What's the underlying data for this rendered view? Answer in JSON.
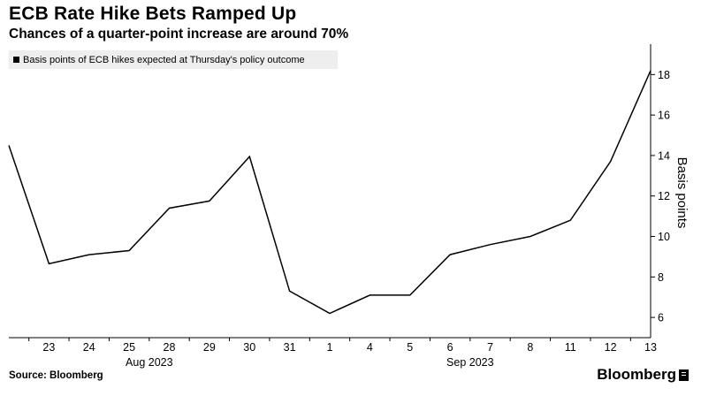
{
  "header": {
    "title": "ECB Rate Hike Bets Ramped Up",
    "subtitle": "Chances of a quarter-point increase are around 70%"
  },
  "footer": {
    "source": "Source: Bloomberg",
    "brand": "Bloomberg"
  },
  "chart_data": {
    "type": "line",
    "legend": "Basis points of ECB hikes expected at Thursday's policy outcome",
    "legend_position": "top-left",
    "ylabel": "Basis points",
    "y_axis_side": "right",
    "ylim": [
      5,
      19.5
    ],
    "yticks": [
      6,
      8,
      10,
      12,
      14,
      16,
      18
    ],
    "grid": false,
    "line_color": "#000000",
    "x_tick_labels": [
      "23",
      "24",
      "25",
      "28",
      "29",
      "30",
      "31",
      "1",
      "4",
      "5",
      "6",
      "7",
      "8",
      "11",
      "12",
      "13"
    ],
    "x_group_labels": [
      {
        "label": "Aug 2023",
        "position_between": [
          "25",
          "28"
        ]
      },
      {
        "label": "Sep 2023",
        "position_between": [
          "6",
          "7"
        ]
      }
    ],
    "series": [
      {
        "x": [
          "2023-08-22",
          "2023-08-23",
          "2023-08-24",
          "2023-08-25",
          "2023-08-28",
          "2023-08-29",
          "2023-08-30",
          "2023-08-31",
          "2023-09-01",
          "2023-09-04",
          "2023-09-05",
          "2023-09-06",
          "2023-09-07",
          "2023-09-08",
          "2023-09-11",
          "2023-09-12",
          "2023-09-13"
        ],
        "values": [
          14.5,
          8.65,
          9.1,
          9.3,
          11.4,
          11.75,
          13.95,
          7.3,
          6.2,
          7.1,
          7.1,
          9.1,
          9.6,
          10.0,
          10.8,
          13.7,
          18.2
        ]
      }
    ]
  }
}
